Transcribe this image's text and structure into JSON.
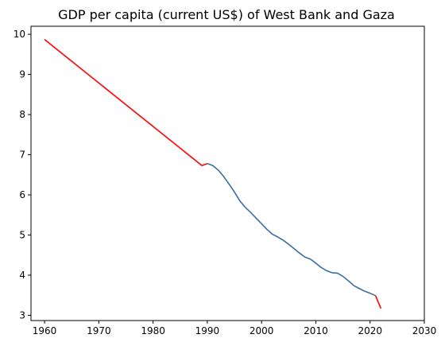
{
  "chart_data": {
    "type": "line",
    "title": "GDP per capita (current US$) of West Bank and Gaza",
    "xlabel": "",
    "ylabel": "",
    "xlim": [
      1957.5,
      2030
    ],
    "ylim": [
      2.87,
      10.2
    ],
    "grid": false,
    "legend": "none",
    "x_ticks": [
      1960,
      1970,
      1980,
      1990,
      2000,
      2010,
      2020,
      2030
    ],
    "y_ticks": [
      3,
      4,
      5,
      6,
      7,
      8,
      9,
      10
    ],
    "series": [
      {
        "color": "#ff0000",
        "x": [
          1960,
          1989,
          1990
        ],
        "y": [
          9.87,
          6.73,
          6.78
        ]
      },
      {
        "color": "#3a6ea5",
        "x": [
          1990,
          1991,
          1992,
          1993,
          1994,
          1995,
          1996,
          1997,
          1998,
          1999,
          2000,
          2001,
          2002,
          2003,
          2004,
          2005,
          2006,
          2007,
          2008,
          2009,
          2010,
          2011,
          2012,
          2013,
          2014,
          2015,
          2016,
          2017,
          2018,
          2019,
          2020,
          2021
        ],
        "y": [
          6.78,
          6.73,
          6.62,
          6.46,
          6.27,
          6.07,
          5.85,
          5.69,
          5.56,
          5.42,
          5.28,
          5.14,
          5.02,
          4.95,
          4.87,
          4.77,
          4.66,
          4.55,
          4.45,
          4.4,
          4.3,
          4.19,
          4.11,
          4.06,
          4.05,
          3.97,
          3.86,
          3.74,
          3.67,
          3.6,
          3.55,
          3.49
        ]
      },
      {
        "color": "#ff0000",
        "x": [
          2021,
          2022
        ],
        "y": [
          3.49,
          3.17
        ]
      }
    ]
  }
}
